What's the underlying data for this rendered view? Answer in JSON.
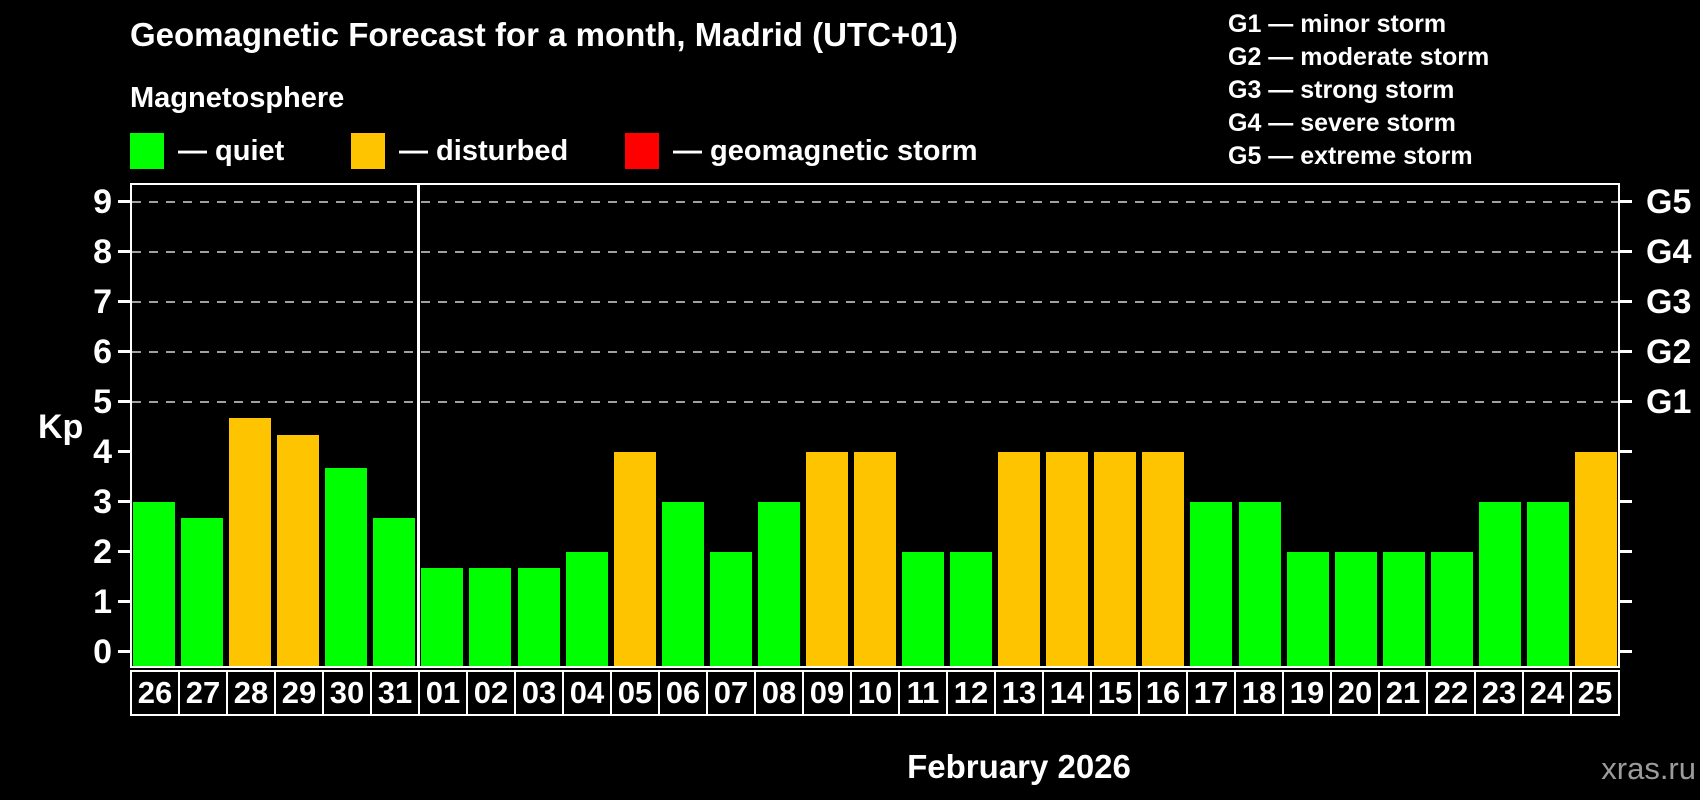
{
  "title": "Geomagnetic Forecast for a month, Madrid (UTC+01)",
  "subtitle": "Magnetosphere",
  "status_legend": [
    {
      "key": "quiet",
      "label": "— quiet",
      "color": "#00ff00"
    },
    {
      "key": "disturbed",
      "label": "— disturbed",
      "color": "#ffc400"
    },
    {
      "key": "storm",
      "label": "— geomagnetic storm",
      "color": "#ff0000"
    }
  ],
  "g_scale_legend": [
    "G1 — minor storm",
    "G2 — moderate storm",
    "G3 — strong storm",
    "G4 — severe storm",
    "G5 — extreme storm"
  ],
  "y_axis": {
    "label": "Kp",
    "ticks": [
      0,
      1,
      2,
      3,
      4,
      5,
      6,
      7,
      8,
      9
    ]
  },
  "right_axis": {
    "labels": [
      {
        "kp": 5,
        "text": "G1"
      },
      {
        "kp": 6,
        "text": "G2"
      },
      {
        "kp": 7,
        "text": "G3"
      },
      {
        "kp": 8,
        "text": "G4"
      },
      {
        "kp": 9,
        "text": "G5"
      }
    ]
  },
  "x_axis": {
    "title": "February 2026"
  },
  "watermark": "xras.ru",
  "chart_data": {
    "type": "bar",
    "title": "Geomagnetic Forecast for a month, Madrid (UTC+01)",
    "xlabel": "February 2026",
    "ylabel": "Kp",
    "ylim": [
      0,
      9.3
    ],
    "grid_dashed_at": [
      5,
      6,
      7,
      8,
      9
    ],
    "legend_position": "top",
    "month_separator_after_index": 5,
    "categories": [
      "26",
      "27",
      "28",
      "29",
      "30",
      "31",
      "01",
      "02",
      "03",
      "04",
      "05",
      "06",
      "07",
      "08",
      "09",
      "10",
      "11",
      "12",
      "13",
      "14",
      "15",
      "16",
      "17",
      "18",
      "19",
      "20",
      "21",
      "22",
      "23",
      "24",
      "25"
    ],
    "values": [
      3.0,
      2.67,
      4.67,
      4.33,
      3.67,
      2.67,
      1.67,
      1.67,
      1.67,
      2.0,
      4.0,
      3.0,
      2.0,
      3.0,
      4.0,
      4.0,
      2.0,
      2.0,
      4.0,
      4.0,
      4.0,
      4.0,
      3.0,
      3.0,
      2.0,
      2.0,
      2.0,
      2.0,
      3.0,
      3.0,
      4.0
    ],
    "statuses": [
      "quiet",
      "quiet",
      "disturbed",
      "disturbed",
      "quiet",
      "quiet",
      "quiet",
      "quiet",
      "quiet",
      "quiet",
      "disturbed",
      "quiet",
      "quiet",
      "quiet",
      "disturbed",
      "disturbed",
      "quiet",
      "quiet",
      "disturbed",
      "disturbed",
      "disturbed",
      "disturbed",
      "quiet",
      "quiet",
      "quiet",
      "quiet",
      "quiet",
      "quiet",
      "quiet",
      "quiet",
      "disturbed"
    ],
    "colors_by_status": {
      "quiet": "#00ff00",
      "disturbed": "#ffc400",
      "storm": "#ff0000"
    }
  }
}
